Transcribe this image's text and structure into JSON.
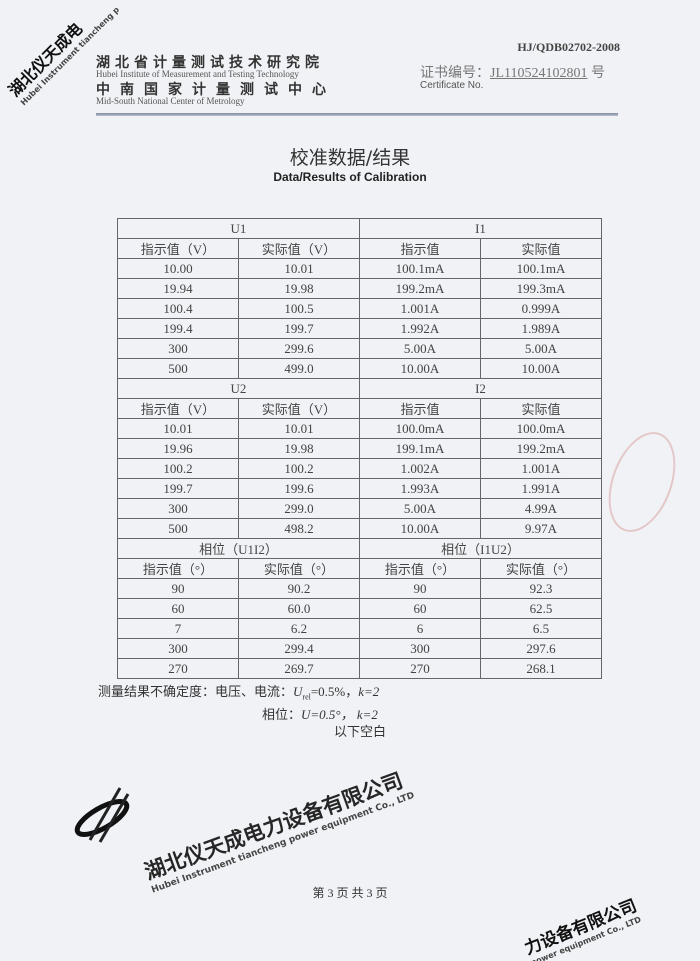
{
  "header": {
    "doc_code": "HJ/QDB02702-2008",
    "org_cn_1": "湖北省计量测试技术研究院",
    "org_en_1": "Hubei Institute of Measurement and Testing Technology",
    "org_cn_2": "中南国家计量测试中心",
    "org_en_2": "Mid-South National Center of Metrology",
    "cert_label": "证书编号：",
    "cert_no": "JL110524102801",
    "cert_suffix": "号",
    "cert_label_en": "Certificate No."
  },
  "title": {
    "cn": "校准数据/结果",
    "en": "Data/Results of Calibration"
  },
  "table": {
    "sections": [
      {
        "left": "U1",
        "right": "I1",
        "headers": [
          "指示值（V）",
          "实际值（V）",
          "指示值",
          "实际值"
        ],
        "rows": [
          [
            "10.00",
            "10.01",
            "100.1mA",
            "100.1mA"
          ],
          [
            "19.94",
            "19.98",
            "199.2mA",
            "199.3mA"
          ],
          [
            "100.4",
            "100.5",
            "1.001A",
            "0.999A"
          ],
          [
            "199.4",
            "199.7",
            "1.992A",
            "1.989A"
          ],
          [
            "300",
            "299.6",
            "5.00A",
            "5.00A"
          ],
          [
            "500",
            "499.0",
            "10.00A",
            "10.00A"
          ]
        ]
      },
      {
        "left": "U2",
        "right": "I2",
        "headers": [
          "指示值（V）",
          "实际值（V）",
          "指示值",
          "实际值"
        ],
        "rows": [
          [
            "10.01",
            "10.01",
            "100.0mA",
            "100.0mA"
          ],
          [
            "19.96",
            "19.98",
            "199.1mA",
            "199.2mA"
          ],
          [
            "100.2",
            "100.2",
            "1.002A",
            "1.001A"
          ],
          [
            "199.7",
            "199.6",
            "1.993A",
            "1.991A"
          ],
          [
            "300",
            "299.0",
            "5.00A",
            "4.99A"
          ],
          [
            "500",
            "498.2",
            "10.00A",
            "9.97A"
          ]
        ]
      },
      {
        "left": "相位（U1I2）",
        "right": "相位（I1U2）",
        "headers": [
          "指示值（°）",
          "实际值（°）",
          "指示值（°）",
          "实际值（°）"
        ],
        "rows": [
          [
            "90",
            "90.2",
            "90",
            "92.3"
          ],
          [
            "60",
            "60.0",
            "60",
            "62.5"
          ],
          [
            "7",
            "6.2",
            "6",
            "6.5"
          ],
          [
            "300",
            "299.4",
            "300",
            "297.6"
          ],
          [
            "270",
            "269.7",
            "270",
            "268.1"
          ]
        ]
      }
    ]
  },
  "notes": {
    "line1": "测量结果不确定度：电压、电流：",
    "u_rel": "U",
    "u_rel_sub": "rel",
    "line1_val": "=0.5%，",
    "k1": "k=2",
    "line2": "相位：",
    "line2_val": "U=0.5°，",
    "k2": "k=2",
    "line3": "以下空白"
  },
  "footer": {
    "page": "第 3 页 共 3 页"
  },
  "stamps": {
    "corner_cn": "湖北仪天成电",
    "corner_en": "Hubei Instrument tiancheng p",
    "center_cn": "湖北仪天成电力设备有限公司",
    "center_en": "Hubei Instrument tiancheng power equipment Co., LTD",
    "bottom_cn": "力设备有限公司",
    "bottom_en": "power equipment Co., LTD",
    "right_cn": "湖北仪天成电力设备有限公司"
  }
}
